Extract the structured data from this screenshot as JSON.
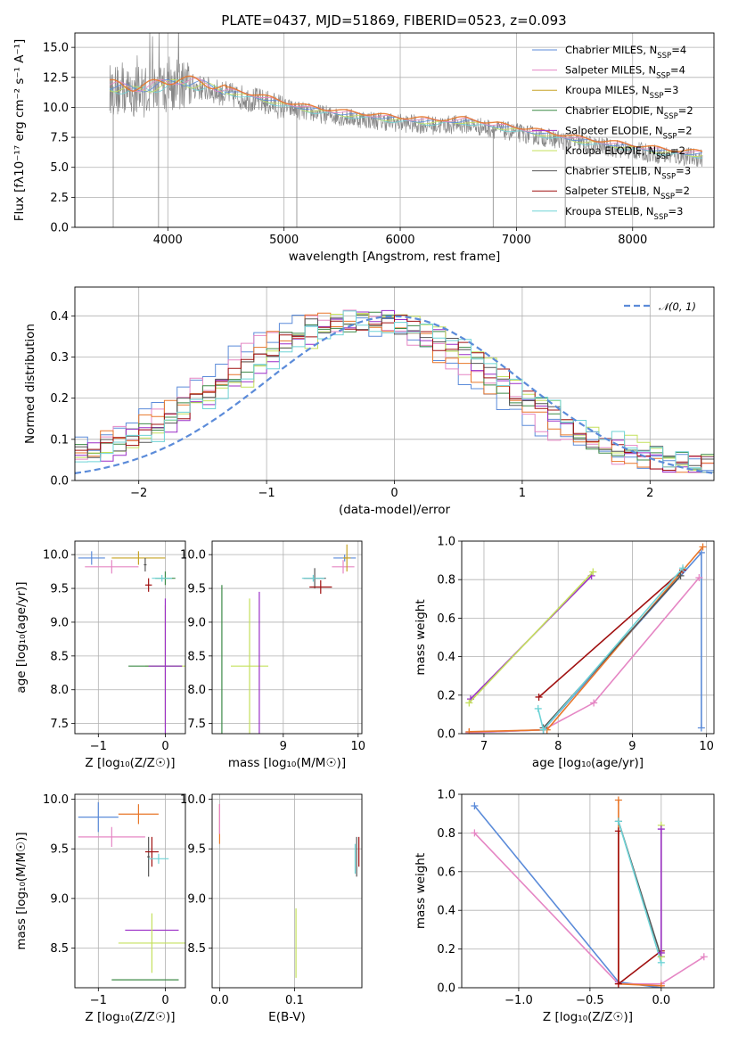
{
  "colors": {
    "Chabrier MILES": "#5b8bd9",
    "Salpeter MILES": "#e586c4",
    "Kroupa MILES": "#c7a326",
    "Chabrier ELODIE": "#3d8a47",
    "Salpeter ELODIE": "#9b2fc7",
    "Kroupa ELODIE": "#c4e05c",
    "Chabrier STELIB": "#555555",
    "Salpeter STELIB": "#a01010",
    "Kroupa STELIB": "#6ed3d6",
    "observed": "#888888",
    "model_orange": "#e8772a",
    "gaussian": "#5b8bd9"
  },
  "chart_data": [
    {
      "id": "spectrum",
      "type": "line",
      "title": "PLATE=0437, MJD=51869, FIBERID=0523, z=0.093",
      "xlabel": "wavelength [Angstrom, rest frame]",
      "ylabel": "Flux [fλ10⁻¹⁷ erg cm⁻² s⁻¹ A⁻¹]",
      "xlim": [
        3200,
        8700
      ],
      "ylim": [
        0,
        16.2
      ],
      "xticks": [
        4000,
        5000,
        6000,
        7000,
        8000
      ],
      "yticks": [
        0.0,
        2.5,
        5.0,
        7.5,
        10.0,
        12.5,
        15.0
      ],
      "ytick_labels": [
        "0.0",
        "2.5",
        "5.0",
        "7.5",
        "10.0",
        "12.5",
        "15.0"
      ],
      "legend_position": "top-right",
      "legend": [
        {
          "name": "Chabrier MILES",
          "ssp": "4"
        },
        {
          "name": "Salpeter MILES",
          "ssp": "4"
        },
        {
          "name": "Kroupa MILES",
          "ssp": "3"
        },
        {
          "name": "Chabrier ELODIE",
          "ssp": "2"
        },
        {
          "name": "Salpeter ELODIE",
          "ssp": "2"
        },
        {
          "name": "Kroupa ELODIE",
          "ssp": "2"
        },
        {
          "name": "Chabrier STELIB",
          "ssp": "3"
        },
        {
          "name": "Salpeter STELIB",
          "ssp": "2"
        },
        {
          "name": "Kroupa STELIB",
          "ssp": "3"
        }
      ],
      "model_curve": {
        "x": [
          3500,
          3700,
          3900,
          4100,
          4300,
          4500,
          4800,
          5000,
          5200,
          5500,
          5800,
          6000,
          6300,
          6560,
          6800,
          7000,
          7300,
          7600,
          8000,
          8300,
          8600
        ],
        "y": [
          11.8,
          11.5,
          11.8,
          12.2,
          11.9,
          11.4,
          10.8,
          10.3,
          9.9,
          9.5,
          9.2,
          9.0,
          8.8,
          8.9,
          8.5,
          8.2,
          7.7,
          7.2,
          6.7,
          6.3,
          6.1
        ]
      },
      "observed_spikes": [
        {
          "x": 3530,
          "low": 0
        },
        {
          "x": 3920,
          "low": 0
        },
        {
          "x": 5110,
          "low": 0
        },
        {
          "x": 6800,
          "low": 0
        },
        {
          "x": 7420,
          "low": 0
        }
      ]
    },
    {
      "id": "residuals",
      "type": "line",
      "xlabel": "(data-model)/error",
      "ylabel": "Normed distribution",
      "xlim": [
        -2.5,
        2.5
      ],
      "ylim": [
        0,
        0.47
      ],
      "xticks": [
        -2,
        -1,
        0,
        1,
        2
      ],
      "xtick_labels": [
        "−2",
        "−1",
        "0",
        "1",
        "2"
      ],
      "yticks": [
        0.0,
        0.1,
        0.2,
        0.3,
        0.4
      ],
      "ytick_labels": [
        "0.0",
        "0.1",
        "0.2",
        "0.3",
        "0.4"
      ],
      "legend_position": "top-right",
      "gaussian_label": "𝒩(0, 1)",
      "bin_width": 0.1
    },
    {
      "id": "age_vs_Z",
      "type": "scatter",
      "xlabel": "Z [log₁₀(Z/Z☉)]",
      "ylabel": "age  [log₁₀(age/yr)]",
      "xlim": [
        -1.35,
        0.3
      ],
      "ylim": [
        7.35,
        10.2
      ],
      "xticks": [
        -1,
        0
      ],
      "xtick_labels": [
        "−1",
        "0"
      ],
      "yticks": [
        7.5,
        8.0,
        8.5,
        9.0,
        9.5,
        10.0
      ],
      "ytick_labels": [
        "7.5",
        "8.0",
        "8.5",
        "9.0",
        "9.5",
        "10.0"
      ],
      "points": [
        {
          "s": "Chabrier MILES",
          "x": -1.1,
          "y": 9.95,
          "ex": 0.2,
          "ey": 0.1
        },
        {
          "s": "Salpeter MILES",
          "x": -0.8,
          "y": 9.82,
          "ex": 0.4,
          "ey": 0.1
        },
        {
          "s": "Kroupa MILES",
          "x": -0.4,
          "y": 9.95,
          "ex": 0.4,
          "ey": 0.1
        },
        {
          "s": "Chabrier ELODIE",
          "x": 0.0,
          "y": 9.65,
          "ex": 0.15,
          "ey": 0.1
        },
        {
          "s": "Salpeter STELIB",
          "x": -0.25,
          "y": 9.55,
          "ex": 0.05,
          "ey": 0.1
        },
        {
          "s": "Kroupa STELIB",
          "x": -0.05,
          "y": 9.65,
          "ex": 0.15,
          "ey": 0.05
        },
        {
          "s": "Chabrier STELIB",
          "x": -0.3,
          "y": 9.85,
          "ex": 0.02,
          "ey": 0.1
        },
        {
          "s": "Kroupa ELODIE",
          "x": 0.0,
          "y": 8.35,
          "ex": 0.3,
          "ey": 0.9
        },
        {
          "s": "Chabrier ELODIE",
          "x": -0.15,
          "y": 8.35,
          "ex": 0.4,
          "ey": 0.0
        },
        {
          "s": "Salpeter ELODIE",
          "x": 0.0,
          "y": 8.35,
          "ex": 0.25,
          "ey": 1.0
        }
      ]
    },
    {
      "id": "age_vs_mass",
      "type": "scatter",
      "xlabel": "mass [log₁₀(M/M☉)]",
      "ylabel": "",
      "xlim": [
        8.05,
        10.05
      ],
      "ylim": [
        7.35,
        10.2
      ],
      "xticks": [
        9,
        10
      ],
      "xtick_labels": [
        "9",
        "10"
      ],
      "yticks": [
        7.5,
        8.0,
        8.5,
        9.0,
        9.5,
        10.0
      ],
      "ytick_labels": [
        "7.5",
        "8.0",
        "8.5",
        "9.0",
        "9.5",
        "10.0"
      ],
      "points": [
        {
          "s": "Chabrier MILES",
          "x": 9.82,
          "y": 9.95,
          "ex": 0.15,
          "ey": 0.05
        },
        {
          "s": "Salpeter MILES",
          "x": 9.8,
          "y": 9.82,
          "ex": 0.15,
          "ey": 0.1
        },
        {
          "s": "Kroupa MILES",
          "x": 9.85,
          "y": 9.95,
          "ex": 0.05,
          "ey": 0.2
        },
        {
          "s": "Chabrier STELIB",
          "x": 9.42,
          "y": 9.65,
          "ex": 0.15,
          "ey": 0.15
        },
        {
          "s": "Salpeter STELIB",
          "x": 9.5,
          "y": 9.52,
          "ex": 0.15,
          "ey": 0.1
        },
        {
          "s": "Kroupa STELIB",
          "x": 9.4,
          "y": 9.65,
          "ex": 0.15,
          "ey": 0.05
        },
        {
          "s": "Kroupa ELODIE",
          "x": 8.55,
          "y": 8.35,
          "ex": 0.25,
          "ey": 1.0
        },
        {
          "s": "Salpeter ELODIE",
          "x": 8.68,
          "y": 8.35,
          "ex": 0.0,
          "ey": 1.1
        },
        {
          "s": "Chabrier ELODIE",
          "x": 8.18,
          "y": 8.35,
          "ex": 0.0,
          "ey": 1.2
        }
      ]
    },
    {
      "id": "massweight_vs_age",
      "type": "line",
      "xlabel": "age  [log₁₀(age/yr)]",
      "ylabel": "mass weight",
      "xlim": [
        6.7,
        10.1
      ],
      "ylim": [
        0,
        1.0
      ],
      "xticks": [
        7,
        8,
        9,
        10
      ],
      "xtick_labels": [
        "7",
        "8",
        "9",
        "10"
      ],
      "yticks": [
        0.0,
        0.2,
        0.4,
        0.6,
        0.8,
        1.0
      ],
      "ytick_labels": [
        "0.0",
        "0.2",
        "0.4",
        "0.6",
        "0.8",
        "1.0"
      ],
      "series": [
        {
          "s": "Chabrier MILES",
          "x": [
            6.8,
            7.8,
            9.93,
            9.93
          ],
          "y": [
            0.005,
            0.02,
            0.94,
            0.03
          ]
        },
        {
          "s": "Salpeter MILES",
          "x": [
            6.8,
            7.8,
            8.48,
            9.9
          ],
          "y": [
            0.005,
            0.02,
            0.16,
            0.81
          ]
        },
        {
          "s": "model_orange",
          "x": [
            6.8,
            7.85,
            9.95
          ],
          "y": [
            0.01,
            0.02,
            0.97
          ]
        },
        {
          "s": "Salpeter ELODIE",
          "x": [
            6.82,
            8.45
          ],
          "y": [
            0.18,
            0.82
          ]
        },
        {
          "s": "Kroupa ELODIE",
          "x": [
            6.8,
            8.47
          ],
          "y": [
            0.16,
            0.84
          ]
        },
        {
          "s": "Salpeter STELIB",
          "x": [
            7.74,
            9.68
          ],
          "y": [
            0.19,
            0.85
          ]
        },
        {
          "s": "Chabrier STELIB",
          "x": [
            7.8,
            9.65
          ],
          "y": [
            0.03,
            0.82
          ]
        },
        {
          "s": "Kroupa STELIB",
          "x": [
            7.73,
            7.8,
            9.68
          ],
          "y": [
            0.13,
            0.02,
            0.86
          ]
        }
      ]
    },
    {
      "id": "mass_vs_Z",
      "type": "scatter",
      "xlabel": "Z [log₁₀(Z/Z☉)]",
      "ylabel": "mass [log₁₀(M/M☉)]",
      "xlim": [
        -1.35,
        0.3
      ],
      "ylim": [
        8.1,
        10.05
      ],
      "xticks": [
        -1,
        0
      ],
      "xtick_labels": [
        "−1",
        "0"
      ],
      "yticks": [
        8.5,
        9.0,
        9.5,
        10.0
      ],
      "ytick_labels": [
        "8.5",
        "9.0",
        "9.5",
        "10.0"
      ],
      "points": [
        {
          "s": "Chabrier MILES",
          "x": -1.0,
          "y": 9.82,
          "ex": 0.3,
          "ey": 0.15
        },
        {
          "s": "Salpeter MILES",
          "x": -0.8,
          "y": 9.62,
          "ex": 0.5,
          "ey": 0.1
        },
        {
          "s": "model_orange",
          "x": -0.4,
          "y": 9.85,
          "ex": 0.3,
          "ey": 0.1
        },
        {
          "s": "Chabrier STELIB",
          "x": -0.25,
          "y": 9.42,
          "ex": 0.02,
          "ey": 0.2
        },
        {
          "s": "Salpeter STELIB",
          "x": -0.2,
          "y": 9.47,
          "ex": 0.1,
          "ey": 0.15
        },
        {
          "s": "Kroupa STELIB",
          "x": -0.1,
          "y": 9.4,
          "ex": 0.15,
          "ey": 0.05
        },
        {
          "s": "Salpeter ELODIE",
          "x": -0.2,
          "y": 8.68,
          "ex": 0.4,
          "ey": 0.0
        },
        {
          "s": "Kroupa ELODIE",
          "x": -0.2,
          "y": 8.55,
          "ex": 0.5,
          "ey": 0.3
        },
        {
          "s": "Chabrier ELODIE",
          "x": -0.3,
          "y": 8.18,
          "ex": 0.5,
          "ey": 0.0
        }
      ]
    },
    {
      "id": "mass_vs_EBV",
      "type": "scatter",
      "xlabel": "E(B-V)",
      "ylabel": "",
      "xlim": [
        -0.01,
        0.19
      ],
      "ylim": [
        8.1,
        10.05
      ],
      "xticks": [
        0.0,
        0.1
      ],
      "xtick_labels": [
        "0.0",
        "0.1"
      ],
      "yticks": [
        8.5,
        9.0,
        9.5,
        10.0
      ],
      "ytick_labels": [
        "8.5",
        "9.0",
        "9.5",
        "10.0"
      ],
      "points": [
        {
          "s": "model_orange",
          "x": 0.0,
          "y": 9.75,
          "ex": 0.0,
          "ey": 0.2
        },
        {
          "s": "Salpeter MILES",
          "x": 0.0,
          "y": 9.8,
          "ex": 0.0,
          "ey": 0.15
        },
        {
          "s": "Kroupa ELODIE",
          "x": 0.102,
          "y": 8.55,
          "ex": 0.0,
          "ey": 0.35
        },
        {
          "s": "Chabrier STELIB",
          "x": 0.183,
          "y": 9.42,
          "ex": 0.0,
          "ey": 0.2
        },
        {
          "s": "Salpeter STELIB",
          "x": 0.186,
          "y": 9.47,
          "ex": 0.0,
          "ey": 0.15
        },
        {
          "s": "Kroupa STELIB",
          "x": 0.181,
          "y": 9.4,
          "ex": 0.0,
          "ey": 0.15
        }
      ]
    },
    {
      "id": "massweight_vs_Z",
      "type": "line",
      "xlabel": "Z [log₁₀(Z/Z☉)]",
      "ylabel": "mass weight",
      "xlim": [
        -1.4,
        0.37
      ],
      "ylim": [
        0,
        1.0
      ],
      "xticks": [
        -1.0,
        -0.5,
        0.0
      ],
      "xtick_labels": [
        "−1.0",
        "−0.5",
        "0.0"
      ],
      "yticks": [
        0.0,
        0.2,
        0.4,
        0.6,
        0.8,
        1.0
      ],
      "ytick_labels": [
        "0.0",
        "0.2",
        "0.4",
        "0.6",
        "0.8",
        "1.0"
      ],
      "series": [
        {
          "s": "Chabrier MILES",
          "x": [
            -1.31,
            -0.3,
            0.0
          ],
          "y": [
            0.94,
            0.03,
            0.0
          ]
        },
        {
          "s": "Salpeter MILES",
          "x": [
            -1.31,
            -0.3,
            0.0,
            0.3
          ],
          "y": [
            0.8,
            0.02,
            0.02,
            0.16
          ]
        },
        {
          "s": "model_orange",
          "x": [
            -0.3,
            -0.3,
            0.0
          ],
          "y": [
            0.97,
            0.02,
            0.01
          ]
        },
        {
          "s": "Salpeter STELIB",
          "x": [
            -0.3,
            -0.3,
            0.0
          ],
          "y": [
            0.81,
            0.02,
            0.19
          ]
        },
        {
          "s": "Chabrier STELIB",
          "x": [
            -0.3,
            0.0
          ],
          "y": [
            0.86,
            0.16
          ]
        },
        {
          "s": "Kroupa STELIB",
          "x": [
            -0.3,
            0.0
          ],
          "y": [
            0.86,
            0.13
          ]
        },
        {
          "s": "Kroupa ELODIE",
          "x": [
            0.0,
            0.0
          ],
          "y": [
            0.84,
            0.16
          ]
        },
        {
          "s": "Salpeter ELODIE",
          "x": [
            0.0,
            0.0
          ],
          "y": [
            0.82,
            0.18
          ]
        }
      ]
    }
  ]
}
